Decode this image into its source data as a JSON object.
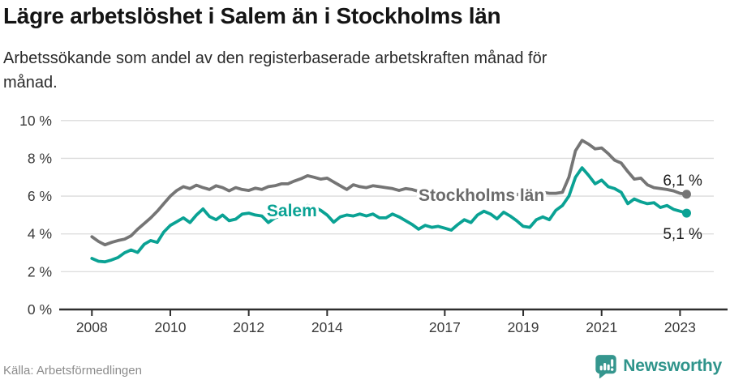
{
  "header": {
    "title": "Lägre arbetslöshet i Salem än i Stockholms län",
    "subtitle": "Arbetssökande som andel av den registerbaserade arbetskraften månad för månad."
  },
  "footer": {
    "source": "Källa: Arbetsförmedlingen",
    "brand_name": "Newsworthy",
    "brand_icon": "speech-bubble-bar-chart-icon",
    "brand_color": "#2f948b",
    "brand_icon_color": "#35968e"
  },
  "colors": {
    "background": "#ffffff",
    "gridline": "#dcdcdc",
    "axis": "#2e2e2e",
    "tick_label": "#3a3a3a",
    "end_label_text": "#1a1a1a",
    "salem_teal": "#0aa294",
    "stockholm_gray": "#757575",
    "stockholm_label_gray": "#6b6b6b"
  },
  "chart_data": {
    "type": "line",
    "title": "Lägre arbetslöshet i Salem än i Stockholms län",
    "subtitle": "Arbetssökande som andel av den registerbaserade arbetskraften månad för månad.",
    "source": "Källa: Arbetsförmedlingen",
    "grid": true,
    "legend_position": "inline-labels",
    "xlim": [
      2007.7,
      2023.6
    ],
    "ylim": [
      0,
      10
    ],
    "x_ticks": [
      2008,
      2010,
      2012,
      2014,
      2017,
      2019,
      2021,
      2023
    ],
    "y_ticks": [
      0,
      2,
      4,
      6,
      8,
      10
    ],
    "y_tick_suffix": " %",
    "x_start": 2008.0,
    "x_step": 0.16667,
    "series": [
      {
        "id": "stockholm",
        "name": "Stockholms län",
        "color": "#757575",
        "end_value": 6.1,
        "end_label": "6,1 %",
        "values": [
          3.85,
          3.6,
          3.42,
          3.55,
          3.65,
          3.72,
          3.9,
          4.25,
          4.55,
          4.85,
          5.2,
          5.6,
          6.0,
          6.3,
          6.5,
          6.4,
          6.58,
          6.45,
          6.35,
          6.55,
          6.45,
          6.28,
          6.45,
          6.35,
          6.3,
          6.42,
          6.35,
          6.5,
          6.55,
          6.65,
          6.65,
          6.8,
          6.92,
          7.08,
          7.0,
          6.9,
          6.95,
          6.75,
          6.55,
          6.35,
          6.6,
          6.5,
          6.45,
          6.55,
          6.5,
          6.45,
          6.4,
          6.3,
          6.4,
          6.35,
          6.25,
          6.3,
          6.2,
          6.25,
          6.15,
          6.1,
          6.15,
          6.1,
          6.05,
          6.1,
          6.15,
          6.1,
          6.05,
          6.0,
          6.05,
          6.1,
          6.05,
          6.1,
          6.15,
          6.2,
          6.15,
          6.15,
          6.2,
          7.0,
          8.4,
          8.95,
          8.75,
          8.5,
          8.55,
          8.25,
          7.9,
          7.75,
          7.3,
          6.9,
          6.95,
          6.6,
          6.45,
          6.4,
          6.35,
          6.28,
          6.15,
          6.1
        ]
      },
      {
        "id": "salem",
        "name": "Salem",
        "color": "#0aa294",
        "end_value": 5.1,
        "end_label": "5,1 %",
        "values": [
          2.7,
          2.55,
          2.52,
          2.62,
          2.75,
          3.0,
          3.15,
          3.02,
          3.45,
          3.65,
          3.55,
          4.1,
          4.45,
          4.65,
          4.85,
          4.6,
          5.0,
          5.32,
          4.92,
          4.75,
          5.0,
          4.7,
          4.78,
          5.05,
          5.1,
          5.0,
          4.95,
          4.6,
          4.85,
          4.95,
          5.05,
          5.15,
          5.3,
          5.5,
          5.42,
          5.25,
          5.0,
          4.62,
          4.9,
          5.0,
          4.95,
          5.05,
          4.95,
          5.05,
          4.85,
          4.85,
          5.05,
          4.9,
          4.7,
          4.5,
          4.25,
          4.45,
          4.35,
          4.4,
          4.3,
          4.2,
          4.5,
          4.75,
          4.6,
          5.0,
          5.2,
          5.05,
          4.8,
          5.15,
          4.95,
          4.7,
          4.4,
          4.35,
          4.75,
          4.9,
          4.75,
          5.25,
          5.5,
          6.0,
          7.0,
          7.5,
          7.1,
          6.65,
          6.85,
          6.5,
          6.4,
          6.2,
          5.6,
          5.85,
          5.7,
          5.6,
          5.65,
          5.4,
          5.5,
          5.3,
          5.2,
          5.1
        ]
      }
    ],
    "series_labels": [
      {
        "series": "stockholm",
        "text": "Stockholms län",
        "x": 2016.33,
        "y": 5.75,
        "anchor": "start",
        "color": "#6b6b6b"
      },
      {
        "series": "salem",
        "text": "Salem",
        "x": 2013.1,
        "y": 4.93,
        "anchor": "middle",
        "color": "#0aa294"
      }
    ],
    "end_labels": [
      {
        "series": "stockholm",
        "text": "6,1 %",
        "x": 2023.57,
        "y": 6.56,
        "anchor": "end"
      },
      {
        "series": "salem",
        "text": "5,1 %",
        "x": 2023.57,
        "y": 3.73,
        "anchor": "end"
      }
    ]
  }
}
